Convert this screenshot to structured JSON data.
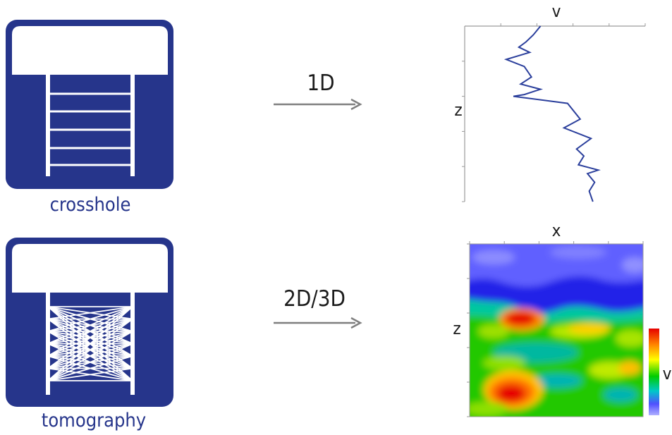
{
  "colors": {
    "brand_blue": "#26358b",
    "arrow_gray": "#7f7f7f",
    "profile_line": "#2b3f9c",
    "axis_gray": "#9a9a9a",
    "text_dark": "#1c1c1c"
  },
  "top_row": {
    "icon_name": "crosshole-icon",
    "icon_label": "crosshole",
    "arrow_label": "1D",
    "chart": {
      "type": "line",
      "x_axis_label": "v",
      "y_axis_label": "z",
      "profile": [
        {
          "v": 0.42,
          "z": 0.0
        },
        {
          "v": 0.38,
          "z": 0.05
        },
        {
          "v": 0.34,
          "z": 0.09
        },
        {
          "v": 0.3,
          "z": 0.12
        },
        {
          "v": 0.36,
          "z": 0.15
        },
        {
          "v": 0.23,
          "z": 0.19
        },
        {
          "v": 0.33,
          "z": 0.23
        },
        {
          "v": 0.37,
          "z": 0.29
        },
        {
          "v": 0.31,
          "z": 0.33
        },
        {
          "v": 0.42,
          "z": 0.36
        },
        {
          "v": 0.33,
          "z": 0.39
        },
        {
          "v": 0.27,
          "z": 0.4
        },
        {
          "v": 0.57,
          "z": 0.44
        },
        {
          "v": 0.64,
          "z": 0.53
        },
        {
          "v": 0.55,
          "z": 0.58
        },
        {
          "v": 0.7,
          "z": 0.64
        },
        {
          "v": 0.62,
          "z": 0.7
        },
        {
          "v": 0.66,
          "z": 0.74
        },
        {
          "v": 0.63,
          "z": 0.79
        },
        {
          "v": 0.74,
          "z": 0.82
        },
        {
          "v": 0.68,
          "z": 0.84
        },
        {
          "v": 0.72,
          "z": 0.89
        },
        {
          "v": 0.69,
          "z": 0.94
        },
        {
          "v": 0.71,
          "z": 1.0
        }
      ]
    }
  },
  "bottom_row": {
    "icon_name": "tomography-icon",
    "icon_label": "tomography",
    "arrow_label": "2D/3D",
    "chart": {
      "type": "heatmap",
      "x_axis_label": "x",
      "y_axis_label": "z",
      "colorbar_label": "v",
      "colormap": [
        "#e60000",
        "#ff8000",
        "#ffff00",
        "#00cc00",
        "#00c8c8",
        "#5050ff",
        "#9999ff"
      ]
    }
  }
}
